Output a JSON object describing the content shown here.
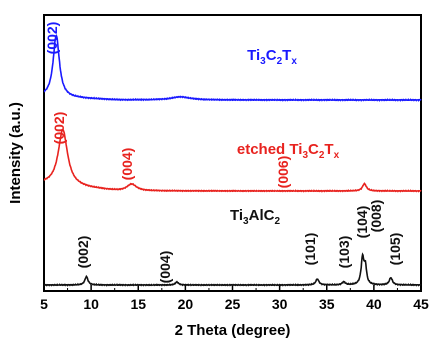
{
  "chart_data": {
    "type": "line",
    "xlabel": "2 Theta (degree)",
    "ylabel": "Intensity (a.u.)",
    "xlim": [
      5,
      45
    ],
    "x_ticks": [
      5,
      10,
      15,
      20,
      25,
      30,
      35,
      40,
      45
    ],
    "y_ticks_shown": false,
    "grid": false,
    "legend": "none; series labelled inline above each trace",
    "series": [
      {
        "name": "Ti3C2Tx",
        "name_parts": [
          [
            "Ti",
            ""
          ],
          [
            "3",
            "sub"
          ],
          [
            "C",
            ""
          ],
          [
            "2",
            "sub"
          ],
          [
            "T",
            ""
          ],
          [
            "x",
            "sub"
          ]
        ],
        "color": "#1a1aff",
        "baseline": 0.0,
        "peaks": [
          {
            "x": 6.3,
            "height": 1.0,
            "width": 0.4,
            "label": "(002)"
          },
          {
            "x": 19.5,
            "height": 0.05,
            "width": 1.2
          }
        ],
        "background": {
          "start": 0.05,
          "end": 0.0
        }
      },
      {
        "name": "etched Ti3C2Tx",
        "name_parts": [
          [
            "etched Ti",
            ""
          ],
          [
            "3",
            "sub"
          ],
          [
            "C",
            ""
          ],
          [
            "2",
            "sub"
          ],
          [
            "T",
            ""
          ],
          [
            "x",
            "sub"
          ]
        ],
        "color": "#e8231f",
        "baseline": 0.0,
        "peaks": [
          {
            "x": 7.0,
            "height": 1.0,
            "width": 0.6,
            "label": "(002)"
          },
          {
            "x": 14.3,
            "height": 0.12,
            "width": 0.6,
            "label": "(004)"
          },
          {
            "x": 28.6,
            "height": 0.0,
            "width": 0.6,
            "label": "(006)"
          },
          {
            "x": 39.0,
            "height": 0.13,
            "width": 0.25
          }
        ],
        "background": {
          "start": 0.12,
          "end": 0.0
        }
      },
      {
        "name": "Ti3AlC2",
        "name_parts": [
          [
            "Ti",
            ""
          ],
          [
            "3",
            "sub"
          ],
          [
            "AlC",
            ""
          ],
          [
            "2",
            "sub"
          ]
        ],
        "color": "#111111",
        "baseline": 0.0,
        "peaks": [
          {
            "x": 9.5,
            "height": 0.14,
            "width": 0.2,
            "label": "(002)"
          },
          {
            "x": 19.1,
            "height": 0.05,
            "width": 0.2,
            "label": "(004)"
          },
          {
            "x": 34.0,
            "height": 0.1,
            "width": 0.2,
            "label": "(101)"
          },
          {
            "x": 36.8,
            "height": 0.05,
            "width": 0.2,
            "label": "(103)"
          },
          {
            "x": 38.8,
            "height": 0.45,
            "width": 0.18,
            "label": "(104)"
          },
          {
            "x": 39.1,
            "height": 0.28,
            "width": 0.15,
            "label": "(008)"
          },
          {
            "x": 41.8,
            "height": 0.12,
            "width": 0.2,
            "label": "(105)"
          }
        ],
        "background": {
          "start": 0.0,
          "end": 0.0
        }
      }
    ]
  }
}
